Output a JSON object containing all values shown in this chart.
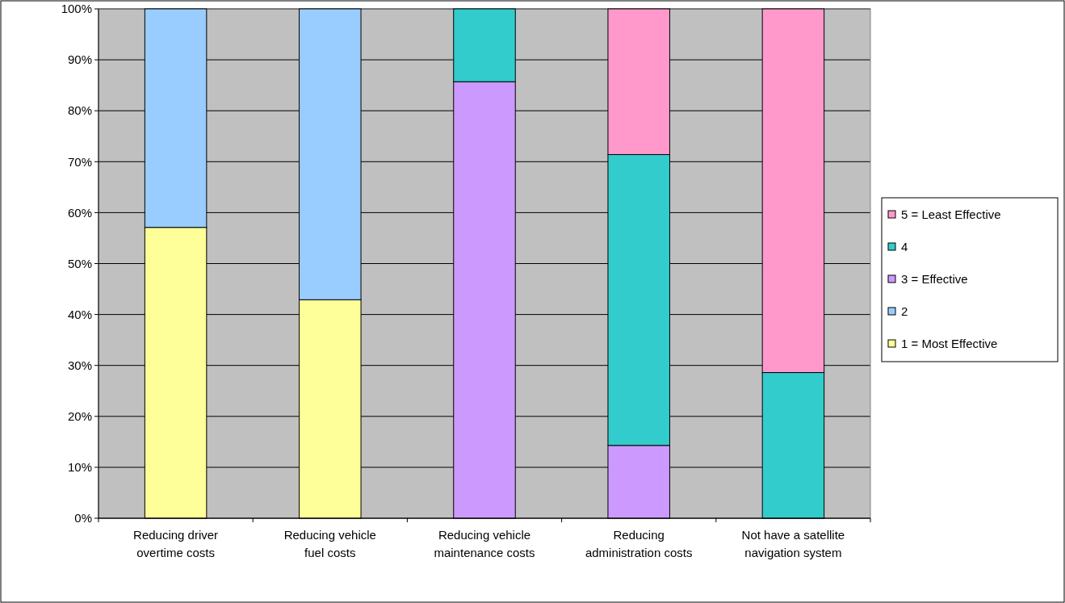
{
  "chart_data": {
    "type": "bar",
    "stacked": true,
    "categories": [
      "Reducing driver overtime costs",
      "Reducing vehicle fuel costs",
      "Reducing vehicle maintenance costs",
      "Reducing administration costs",
      "Not have a satellite navigation system"
    ],
    "series": [
      {
        "name": "1 = Most Effective",
        "color": "#ffff99",
        "values": [
          57.1,
          42.9,
          null,
          null,
          null
        ]
      },
      {
        "name": "2",
        "color": "#99ccff",
        "values": [
          42.9,
          57.1,
          null,
          null,
          null
        ]
      },
      {
        "name": "3 = Effective",
        "color": "#cc99ff",
        "values": [
          null,
          null,
          85.7,
          14.3,
          null
        ]
      },
      {
        "name": "4",
        "color": "#33cccc",
        "values": [
          null,
          null,
          14.3,
          57.1,
          28.6
        ]
      },
      {
        "name": "5 = Least Effective",
        "color": "#ff99cc",
        "values": [
          null,
          null,
          null,
          28.6,
          71.4
        ]
      }
    ],
    "ylim": [
      0,
      100
    ],
    "yticks": [
      {
        "value": 0,
        "label": "0%"
      },
      {
        "value": 10,
        "label": "10%"
      },
      {
        "value": 20,
        "label": "20%"
      },
      {
        "value": 30,
        "label": "30%"
      },
      {
        "value": 40,
        "label": "40%"
      },
      {
        "value": 50,
        "label": "50%"
      },
      {
        "value": 60,
        "label": "60%"
      },
      {
        "value": 70,
        "label": "70%"
      },
      {
        "value": 80,
        "label": "80%"
      },
      {
        "value": 90,
        "label": "90%"
      },
      {
        "value": 100,
        "label": "100%"
      }
    ],
    "grid": "y",
    "legend": "right"
  }
}
